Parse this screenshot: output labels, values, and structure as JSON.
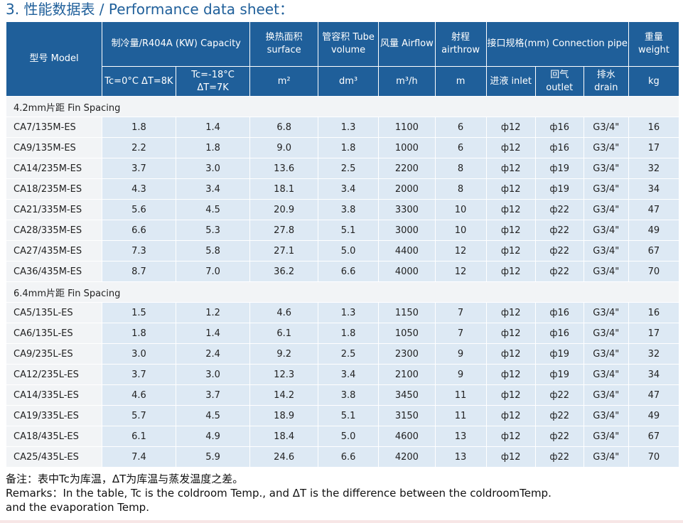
{
  "title": "3. 性能数据表 / Performance data sheet：",
  "header": {
    "model": "型号 Model",
    "capacity": "制冷量/R404A (KW) Capacity",
    "tc1": "Tc=0°C ΔT=8K",
    "tc2": "Tc=-18°C ΔT=7K",
    "surface": "换热面积 surface",
    "surface_unit": "m²",
    "tube": "管容积 Tube volume",
    "tube_unit": "dm³",
    "airflow": "风量 Airflow",
    "airflow_unit": "m³/h",
    "airthrow": "射程 airthrow",
    "airthrow_unit": "m",
    "connection": "接口规格(mm) Connection pipe",
    "inlet": "进液 inlet",
    "outlet": "回气 outlet",
    "drain": "排水 drain",
    "weight": "重量 weight",
    "weight_unit": "kg"
  },
  "sections": [
    {
      "label": "4.2mm片距 Fin Spacing",
      "rows": [
        [
          "CA7/135M-ES",
          "1.8",
          "1.4",
          "6.8",
          "1.3",
          "1100",
          "6",
          "ф12",
          "ф16",
          "G3/4\"",
          "16"
        ],
        [
          "CA9/135M-ES",
          "2.2",
          "1.8",
          "9.0",
          "1.8",
          "1000",
          "6",
          "ф12",
          "ф16",
          "G3/4\"",
          "17"
        ],
        [
          "CA14/235M-ES",
          "3.7",
          "3.0",
          "13.6",
          "2.5",
          "2200",
          "8",
          "ф12",
          "ф19",
          "G3/4\"",
          "32"
        ],
        [
          "CA18/235M-ES",
          "4.3",
          "3.4",
          "18.1",
          "3.4",
          "2000",
          "8",
          "ф12",
          "ф19",
          "G3/4\"",
          "34"
        ],
        [
          "CA21/335M-ES",
          "5.6",
          "4.5",
          "20.9",
          "3.8",
          "3300",
          "10",
          "ф12",
          "ф22",
          "G3/4\"",
          "47"
        ],
        [
          "CA28/335M-ES",
          "6.6",
          "5.3",
          "27.8",
          "5.1",
          "3000",
          "10",
          "ф12",
          "ф22",
          "G3/4\"",
          "49"
        ],
        [
          "CA27/435M-ES",
          "7.3",
          "5.8",
          "27.1",
          "5.0",
          "4400",
          "12",
          "ф12",
          "ф22",
          "G3/4\"",
          "67"
        ],
        [
          "CA36/435M-ES",
          "8.7",
          "7.0",
          "36.2",
          "6.6",
          "4000",
          "12",
          "ф12",
          "ф22",
          "G3/4\"",
          "70"
        ]
      ]
    },
    {
      "label": "6.4mm片距 Fin Spacing",
      "rows": [
        [
          "CA5/135L-ES",
          "1.5",
          "1.2",
          "4.6",
          "1.3",
          "1150",
          "7",
          "ф12",
          "ф16",
          "G3/4\"",
          "16"
        ],
        [
          "CA6/135L-ES",
          "1.8",
          "1.4",
          "6.1",
          "1.8",
          "1050",
          "7",
          "ф12",
          "ф16",
          "G3/4\"",
          "17"
        ],
        [
          "CA9/235L-ES",
          "3.0",
          "2.4",
          "9.2",
          "2.5",
          "2300",
          "9",
          "ф12",
          "ф19",
          "G3/4\"",
          "32"
        ],
        [
          "CA12/235L-ES",
          "3.7",
          "3.0",
          "12.3",
          "3.4",
          "2100",
          "9",
          "ф12",
          "ф19",
          "G3/4\"",
          "34"
        ],
        [
          "CA14/335L-ES",
          "4.6",
          "3.7",
          "14.2",
          "3.8",
          "3450",
          "11",
          "ф12",
          "ф22",
          "G3/4\"",
          "47"
        ],
        [
          "CA19/335L-ES",
          "5.7",
          "4.5",
          "18.9",
          "5.1",
          "3150",
          "11",
          "ф12",
          "ф22",
          "G3/4\"",
          "49"
        ],
        [
          "CA18/435L-ES",
          "6.1",
          "4.9",
          "18.4",
          "5.0",
          "4600",
          "13",
          "ф12",
          "ф22",
          "G3/4\"",
          "67"
        ],
        [
          "CA25/435L-ES",
          "7.4",
          "5.9",
          "24.6",
          "6.6",
          "4200",
          "13",
          "ф12",
          "ф22",
          "G3/4\"",
          "70"
        ]
      ]
    }
  ],
  "remarks": {
    "cn": "备注：表中Tc为库温，ΔT为库温与蒸发温度之差。",
    "en1": "Remarks：In the table, Tc is the coldroom Temp., and ΔT is the difference between the coldroomTemp.",
    "en2": "and the evaporation Temp."
  }
}
